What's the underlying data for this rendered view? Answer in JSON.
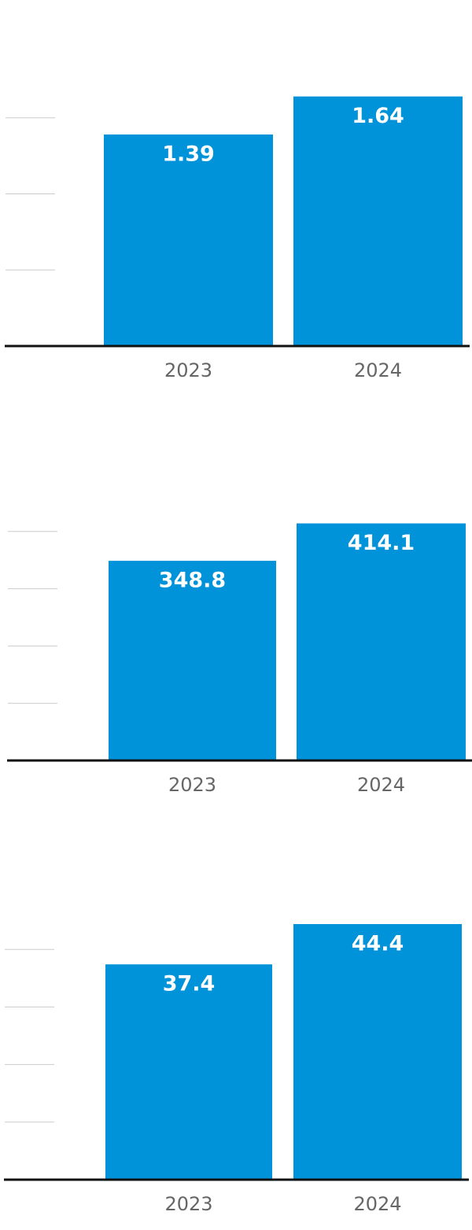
{
  "chart_data": [
    {
      "type": "bar",
      "categories": [
        "2023",
        "2024"
      ],
      "values": [
        1.39,
        1.64
      ],
      "color": "#0093d9",
      "ylim": [
        0,
        2
      ],
      "yticks": [
        0.5,
        1,
        1.5
      ],
      "grid": true
    },
    {
      "type": "bar",
      "categories": [
        "2023",
        "2024"
      ],
      "values": [
        348.8,
        414.1
      ],
      "color": "#0093d9",
      "ylim": [
        0,
        500
      ],
      "yticks": [
        100,
        200,
        300,
        400
      ],
      "grid": true
    },
    {
      "type": "bar",
      "categories": [
        "2023",
        "2024"
      ],
      "values": [
        37.4,
        44.4
      ],
      "color": "#0093d9",
      "ylim": [
        0,
        50
      ],
      "yticks": [
        10,
        20,
        30,
        40
      ],
      "grid": true
    }
  ]
}
